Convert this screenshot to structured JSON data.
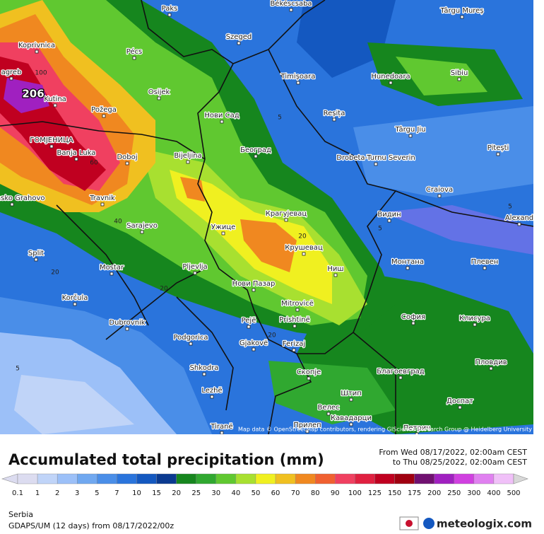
{
  "map": {
    "places": [
      "Paks",
      "Békéscsaba",
      "Târgu Mureș",
      "Koprivnica",
      "Pécs",
      "Szeged",
      "agreb",
      "Kutina",
      "Timișoara",
      "Hunedoara",
      "Sibiu",
      "Osijek",
      "Нови Сад",
      "Požega",
      "Reșița",
      "Târgu Jiu",
      "ГОМЈЕНИЦА",
      "Banja Luka",
      "Doboj",
      "Bijeljina",
      "Београд",
      "Drobeta-Turnu Severin",
      "Pitești",
      "Bosansko Grahovo",
      "Travnik",
      "Craiova",
      "Видин",
      "Alexand",
      "Sarajevo",
      "Ужице",
      "Крагујевац",
      "Крушевац",
      "Split",
      "Mostar",
      "Pljevlja",
      "Ниш",
      "Монтана",
      "Плевен",
      "Нови Пазар",
      "Korčula",
      "Mitrovicë",
      "София",
      "Клисура",
      "Dubrovnik",
      "Pejë",
      "Prishtinë",
      "Podgorica",
      "Gjakovë",
      "Ferizaj",
      "Shkodra",
      "Скопје",
      "Благоевград",
      "Пловдив",
      "Lezhë",
      "Штип",
      "Доспат",
      "Велес",
      "Tiranë",
      "Прилеп",
      "Кавадарци",
      "Петрич"
    ],
    "contour_labels": [
      "100",
      "60",
      "40",
      "20",
      "20",
      "20",
      "20",
      "5",
      "5",
      "5",
      "5"
    ],
    "max_value": "206",
    "credit": "Map data © OpenStreetMap contributors, rendering GIScience Research Group @ Heidelberg University"
  },
  "header": {
    "title": "Accumulated total precipitation (mm)",
    "from": "From Wed 08/17/2022, 02:00am CEST",
    "to": "to Thu 08/25/2022, 02:00am CEST"
  },
  "legend": {
    "items": [
      {
        "value": 0.1,
        "color": "#dcdcf0"
      },
      {
        "value": 1,
        "color": "#c0d4f8"
      },
      {
        "value": 2,
        "color": "#9cc0f8"
      },
      {
        "value": 3,
        "color": "#70a8f0"
      },
      {
        "value": 5,
        "color": "#4a8ee8"
      },
      {
        "value": 7,
        "color": "#2a74dc"
      },
      {
        "value": 10,
        "color": "#1458c0"
      },
      {
        "value": 15,
        "color": "#0a3a90"
      },
      {
        "value": 20,
        "color": "#16861e"
      },
      {
        "value": 25,
        "color": "#30a830"
      },
      {
        "value": 30,
        "color": "#60c830"
      },
      {
        "value": 40,
        "color": "#a8e030"
      },
      {
        "value": 50,
        "color": "#f0f020"
      },
      {
        "value": 60,
        "color": "#f0c020"
      },
      {
        "value": 70,
        "color": "#f08820"
      },
      {
        "value": 80,
        "color": "#f06030"
      },
      {
        "value": 90,
        "color": "#f04060"
      },
      {
        "value": 100,
        "color": "#e02040"
      },
      {
        "value": 125,
        "color": "#c00020"
      },
      {
        "value": 150,
        "color": "#a00010"
      },
      {
        "value": 175,
        "color": "#701070"
      },
      {
        "value": 200,
        "color": "#a020c0"
      },
      {
        "value": 250,
        "color": "#d040e0"
      },
      {
        "value": 300,
        "color": "#e080f0"
      },
      {
        "value": 400,
        "color": "#f0c0f8"
      },
      {
        "value": 500,
        "color": "#d8d8d8"
      }
    ]
  },
  "footer": {
    "region": "Serbia",
    "model": "GDAPS/UM (12 days) from 08/17/2022/00z",
    "brand": "meteologix.com"
  }
}
